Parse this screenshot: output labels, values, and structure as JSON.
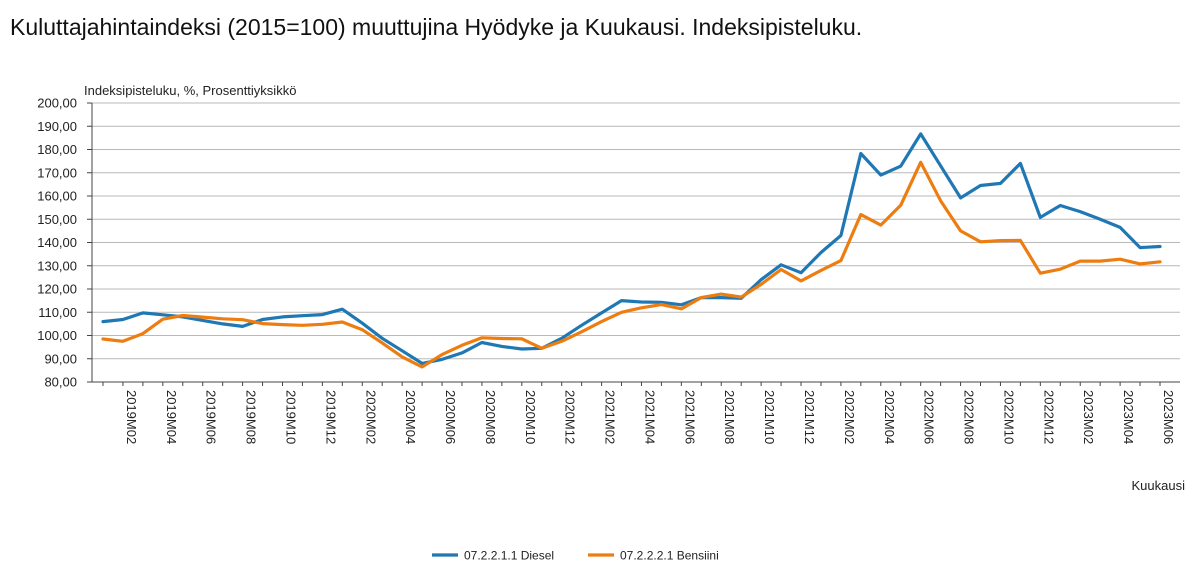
{
  "chart_data": {
    "type": "line",
    "title": "Kuluttajahintaindeksi (2015=100) muuttujina Hyödyke ja Kuukausi. Indeksipisteluku.",
    "ylabel": "Indeksipisteluku, %, Prosenttiyksikkö",
    "xlabel": "Kuukausi",
    "ylim": [
      80,
      200
    ],
    "y_ticks": [
      "80,00",
      "90,00",
      "100,00",
      "110,00",
      "120,00",
      "130,00",
      "140,00",
      "150,00",
      "160,00",
      "170,00",
      "180,00",
      "190,00",
      "200,00"
    ],
    "x_tick_labels": [
      "2019M02",
      "2019M04",
      "2019M06",
      "2019M08",
      "2019M10",
      "2019M12",
      "2020M02",
      "2020M04",
      "2020M06",
      "2020M08",
      "2020M10",
      "2020M12",
      "2021M02",
      "2021M04",
      "2021M06",
      "2021M08",
      "2021M10",
      "2021M12",
      "2022M02",
      "2022M04",
      "2022M06",
      "2022M08",
      "2022M10",
      "2022M12",
      "2023M02",
      "2023M04",
      "2023M06"
    ],
    "x": [
      "2019M01",
      "2019M02",
      "2019M03",
      "2019M04",
      "2019M05",
      "2019M06",
      "2019M07",
      "2019M08",
      "2019M09",
      "2019M10",
      "2019M11",
      "2019M12",
      "2020M01",
      "2020M02",
      "2020M03",
      "2020M04",
      "2020M05",
      "2020M06",
      "2020M07",
      "2020M08",
      "2020M09",
      "2020M10",
      "2020M11",
      "2020M12",
      "2021M01",
      "2021M02",
      "2021M03",
      "2021M04",
      "2021M05",
      "2021M06",
      "2021M07",
      "2021M08",
      "2021M09",
      "2021M10",
      "2021M11",
      "2021M12",
      "2022M01",
      "2022M02",
      "2022M03",
      "2022M04",
      "2022M05",
      "2022M06",
      "2022M07",
      "2022M08",
      "2022M09",
      "2022M10",
      "2022M11",
      "2022M12",
      "2023M01",
      "2023M02",
      "2023M03",
      "2023M04",
      "2023M05",
      "2023M06"
    ],
    "series": [
      {
        "name": "07.2.2.1.1 Diesel",
        "color": "#1f78b4",
        "values": [
          106.0,
          106.9,
          109.7,
          108.9,
          108.0,
          106.5,
          105.0,
          103.9,
          106.9,
          108.0,
          108.5,
          109.0,
          111.3,
          105.3,
          98.8,
          93.4,
          88.0,
          89.7,
          92.5,
          97.0,
          95.3,
          94.2,
          94.5,
          98.8,
          104.4,
          109.7,
          115.0,
          114.4,
          114.3,
          113.2,
          116.3,
          116.3,
          116.0,
          124.0,
          130.4,
          127.0,
          135.7,
          143.0,
          178.3,
          169.0,
          172.8,
          186.7,
          173.0,
          159.2,
          164.5,
          165.4,
          174.0,
          150.8,
          155.9,
          153.3,
          150.0,
          146.5,
          137.8,
          138.3
        ]
      },
      {
        "name": "07.2.2.2.1 Bensiini",
        "color": "#ee7d11",
        "values": [
          98.5,
          97.5,
          100.8,
          107.0,
          108.6,
          107.9,
          107.2,
          106.8,
          105.1,
          104.7,
          104.4,
          104.8,
          105.8,
          102.5,
          96.8,
          90.8,
          86.5,
          91.8,
          95.8,
          99.0,
          98.7,
          98.6,
          94.5,
          97.5,
          101.6,
          106.0,
          110.0,
          111.9,
          113.3,
          111.5,
          116.3,
          117.8,
          116.5,
          122.0,
          128.4,
          123.5,
          128.0,
          132.2,
          152.0,
          147.5,
          156.0,
          174.5,
          158.0,
          145.0,
          140.3,
          140.8,
          140.9,
          126.8,
          128.5,
          132.0,
          132.0,
          132.8,
          130.8,
          131.7
        ]
      }
    ],
    "grid": true,
    "legend_position": "bottom"
  }
}
